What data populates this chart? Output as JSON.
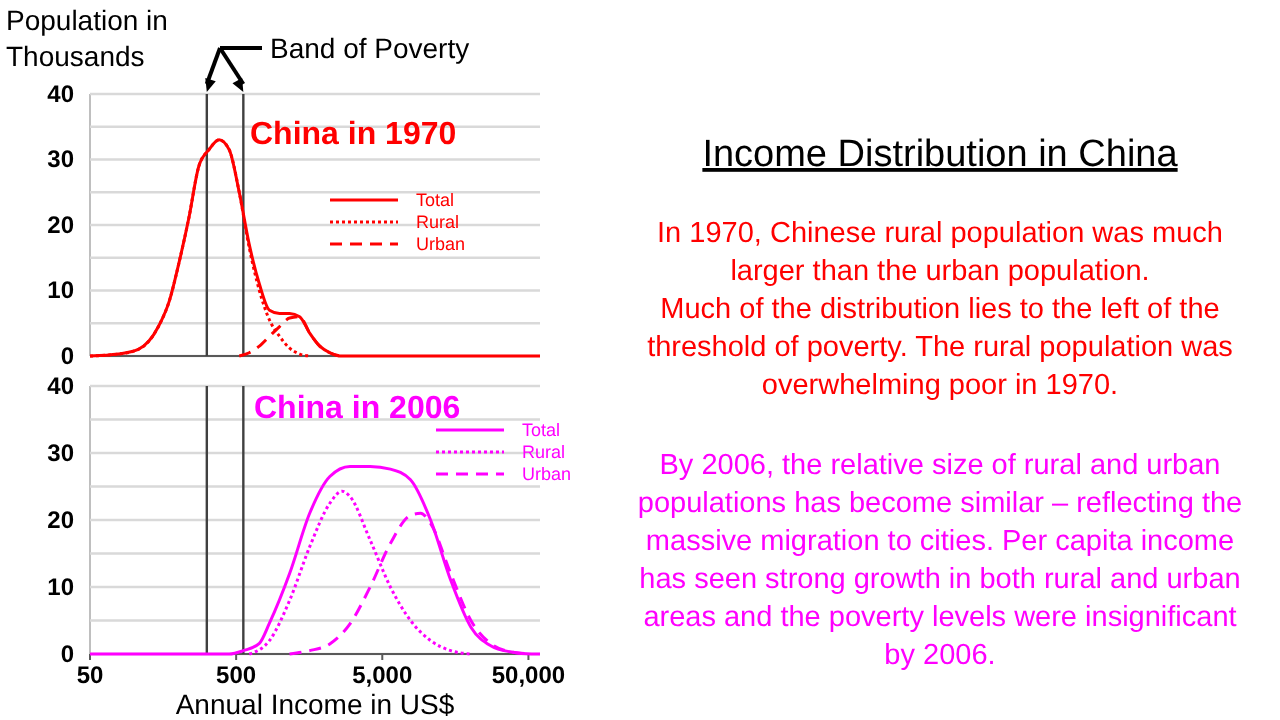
{
  "chart_data": [
    {
      "type": "line",
      "title": "China in 1970",
      "ylabel": "Population in Thousands",
      "annotations": [
        "Band of Poverty"
      ],
      "log": "x",
      "xlim": [
        50,
        60000
      ],
      "ylim": [
        0,
        40
      ],
      "yticks": [
        0,
        {
          "value": 5,
          "label": null
        },
        10,
        {
          "value": 15,
          "label": null
        },
        20,
        {
          "value": 25,
          "label": null
        },
        30,
        {
          "value": 35,
          "label": null
        },
        40
      ],
      "tick_labels": "y",
      "grid": "y",
      "legend": "right",
      "ref_lines": [
        {
          "axis": "x",
          "value": 315
        },
        {
          "axis": "x",
          "value": 560
        }
      ],
      "series": [
        {
          "name": "Total",
          "color": "#ff0000",
          "line_style": "solid",
          "x": [
            50,
            78,
            107,
            147,
            175,
            202,
            237,
            278,
            326,
            382,
            448,
            525,
            615,
            721,
            845,
            991,
            1161,
            1360,
            1593,
            1867,
            2188,
            2564,
            60000
          ],
          "values": [
            0,
            0.3,
            1,
            4.5,
            8.5,
            14,
            21,
            29,
            31.5,
            33,
            31.5,
            25,
            17,
            11,
            7,
            6.5,
            6.5,
            6,
            3.5,
            1.5,
            0.5,
            0,
            0
          ]
        },
        {
          "name": "Rural",
          "color": "#ff0000",
          "line_style": "dotted",
          "x": [
            50,
            78,
            107,
            147,
            175,
            202,
            237,
            278,
            326,
            382,
            448,
            525,
            615,
            721,
            845,
            991,
            1161,
            1360,
            1593
          ],
          "values": [
            0,
            0.3,
            1,
            4.5,
            8.5,
            14,
            21,
            29,
            31.5,
            33,
            31.5,
            25,
            16.5,
            10,
            5.5,
            3,
            1.2,
            0.3,
            0
          ]
        },
        {
          "name": "Urban",
          "color": "#ff0000",
          "line_style": "dashed",
          "x": [
            525,
            615,
            721,
            845,
            991,
            1161,
            1360,
            1593,
            1867,
            2188,
            2564
          ],
          "values": [
            0,
            0.5,
            1.5,
            3,
            4.5,
            5.8,
            6,
            3.5,
            1.5,
            0.5,
            0
          ]
        }
      ]
    },
    {
      "type": "line",
      "title": "China in 2006",
      "xlabel": "Annual Income in US$",
      "log": "x",
      "xlim": [
        50,
        60000
      ],
      "xticks": [
        50,
        500,
        {
          "value": 5000,
          "label": "5,000"
        },
        {
          "value": 50000,
          "label": "50,000"
        }
      ],
      "ylim": [
        0,
        40
      ],
      "yticks": [
        0,
        {
          "value": 5,
          "label": null
        },
        10,
        {
          "value": 15,
          "label": null
        },
        20,
        {
          "value": 25,
          "label": null
        },
        30,
        {
          "value": 35,
          "label": null
        },
        40
      ],
      "grid": "y",
      "legend": "top right",
      "ref_lines": [
        {
          "axis": "x",
          "value": 315
        },
        {
          "axis": "x",
          "value": 560
        }
      ],
      "series": [
        {
          "name": "Total",
          "color": "#ff00ff",
          "line_style": "solid",
          "x": [
            50,
            448,
            560,
            721,
            845,
            1161,
            1593,
            2188,
            3005,
            4130,
            5680,
            7800,
            10700,
            14700,
            20200,
            27800,
            38200,
            52500,
            60000
          ],
          "values": [
            0,
            0,
            0.5,
            1.6,
            4.6,
            12,
            21,
            26.5,
            28,
            28,
            27.6,
            26,
            20,
            11,
            4,
            1.2,
            0.3,
            0,
            0
          ]
        },
        {
          "name": "Rural",
          "color": "#ff00ff",
          "line_style": "dotted",
          "x": [
            615,
            845,
            1161,
            1593,
            2188,
            2650,
            3005,
            4130,
            5680,
            7800,
            10700,
            14700,
            20200
          ],
          "values": [
            0,
            2,
            8,
            16,
            22.5,
            24.3,
            23.5,
            17,
            10,
            5,
            2,
            0.5,
            0
          ]
        },
        {
          "name": "Urban",
          "color": "#ff00ff",
          "line_style": "dashed",
          "x": [
            1160,
            1593,
            2188,
            3005,
            4130,
            5680,
            7800,
            9140,
            10700,
            14700,
            20200,
            27800,
            38200,
            52500
          ],
          "values": [
            0,
            0.5,
            1.5,
            4.5,
            10,
            16.5,
            20.7,
            21,
            19.5,
            12,
            5,
            1.5,
            0.3,
            0
          ]
        }
      ]
    },
    {
      "type": "other",
      "title": "Income Distribution in China",
      "annotations": [
        "In 1970, Chinese rural population was much larger than the urban population.",
        "Much of the distribution lies to the left of the threshold of poverty.  The rural population was overwhelming poor in 1970.",
        "By 2006, the relative size of rural and urban populations has become similar – reflecting the massive migration to cities.  Per capita income has seen strong growth in both rural and urban areas and the poverty levels were insignificant by 2006."
      ]
    }
  ]
}
